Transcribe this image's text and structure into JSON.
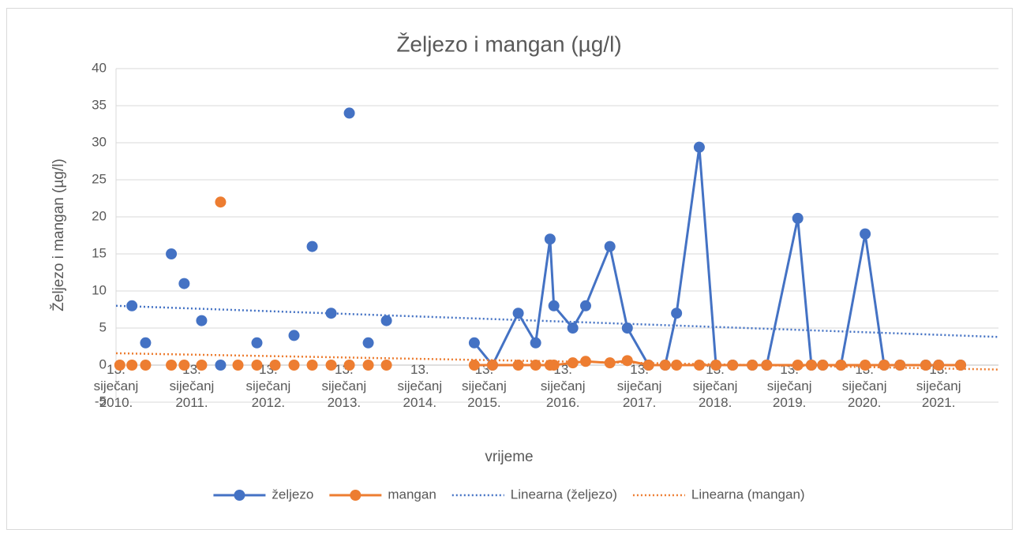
{
  "chart_data": {
    "type": "line",
    "title": "Željezo i mangan (µg/l)",
    "x_label": "vrijeme",
    "y_label": "Željezo i mangan (µg/l)",
    "x": [
      2010.05,
      null,
      2010.21,
      null,
      2010.39,
      null,
      2010.73,
      null,
      2010.9,
      null,
      2011.13,
      null,
      2011.38,
      null,
      2011.61,
      null,
      2011.86,
      null,
      2012.1,
      null,
      2012.35,
      null,
      2012.59,
      null,
      2012.84,
      null,
      2013.08,
      null,
      2013.33,
      null,
      2013.57,
      null,
      2014.73,
      2014.97,
      2015.31,
      2015.54,
      2015.73,
      2015.78,
      2016.03,
      2016.2,
      2016.52,
      2016.75,
      2017.03,
      2017.25,
      2017.4,
      2017.7,
      2017.92,
      2018.14,
      2018.4,
      2018.59,
      2019.0,
      2019.18,
      2019.33,
      2019.57,
      2019.89,
      2020.14,
      2020.35,
      2020.69,
      2020.86,
      2021.15
    ],
    "series": [
      {
        "name": "željezo",
        "color": "#4472c4",
        "values": [
          null,
          null,
          8,
          null,
          3,
          null,
          15,
          null,
          11,
          null,
          6,
          null,
          0,
          null,
          null,
          null,
          3,
          null,
          null,
          null,
          4,
          null,
          16,
          null,
          7,
          null,
          34,
          null,
          3,
          null,
          6,
          null,
          3,
          0,
          7,
          3,
          17,
          8,
          5,
          8,
          16,
          5,
          0,
          0,
          7,
          29.4,
          0,
          0,
          0,
          0,
          19.8,
          0,
          0,
          0,
          17.7,
          0,
          0,
          0,
          0,
          0
        ]
      },
      {
        "name": "mangan",
        "color": "#ed7d31",
        "values": [
          0,
          null,
          0,
          null,
          0,
          null,
          0,
          null,
          0,
          null,
          0,
          null,
          22,
          null,
          0,
          null,
          0,
          null,
          0,
          null,
          0,
          null,
          0,
          null,
          0,
          null,
          0,
          null,
          0,
          null,
          0,
          null,
          0,
          0,
          0,
          0,
          0,
          0,
          0.3,
          0.5,
          0.3,
          0.6,
          0,
          0,
          0,
          0,
          0,
          0,
          0,
          0,
          0,
          0,
          0,
          0,
          0,
          0,
          0,
          0,
          0,
          0
        ]
      }
    ],
    "trendlines": [
      {
        "name": "Linearna (željezo)",
        "color": "#4472c4",
        "x": [
          2010,
          2021.65
        ],
        "values": [
          8,
          3.8
        ]
      },
      {
        "name": "Linearna (mangan)",
        "color": "#ed7d31",
        "x": [
          2010,
          2021.65
        ],
        "values": [
          1.6,
          -0.6
        ]
      }
    ],
    "xlim": [
      2010,
      2021.65
    ],
    "xticks": [
      {
        "value": 2010,
        "label": "13. siječanj 2010."
      },
      {
        "value": 2011,
        "label": "13. siječanj 2011."
      },
      {
        "value": 2012.01,
        "label": "13. siječanj 2012."
      },
      {
        "value": 2013.01,
        "label": "13. siječanj 2013."
      },
      {
        "value": 2014.01,
        "label": "13. siječanj 2014."
      },
      {
        "value": 2014.86,
        "label": "13. siječanj 2015."
      },
      {
        "value": 2015.9,
        "label": "13. siječanj 2016."
      },
      {
        "value": 2016.91,
        "label": "13. siječanj 2017."
      },
      {
        "value": 2017.91,
        "label": "13. siječanj 2018."
      },
      {
        "value": 2018.89,
        "label": "13. siječanj 2019."
      },
      {
        "value": 2019.88,
        "label": "13. siječanj 2020."
      },
      {
        "value": 2020.86,
        "label": "13. siječanj 2021."
      }
    ],
    "ylim": [
      -5,
      40
    ],
    "yticks": [
      -5,
      0,
      5,
      10,
      15,
      20,
      25,
      30,
      35,
      40
    ],
    "grid": true,
    "legend": "bottom"
  }
}
